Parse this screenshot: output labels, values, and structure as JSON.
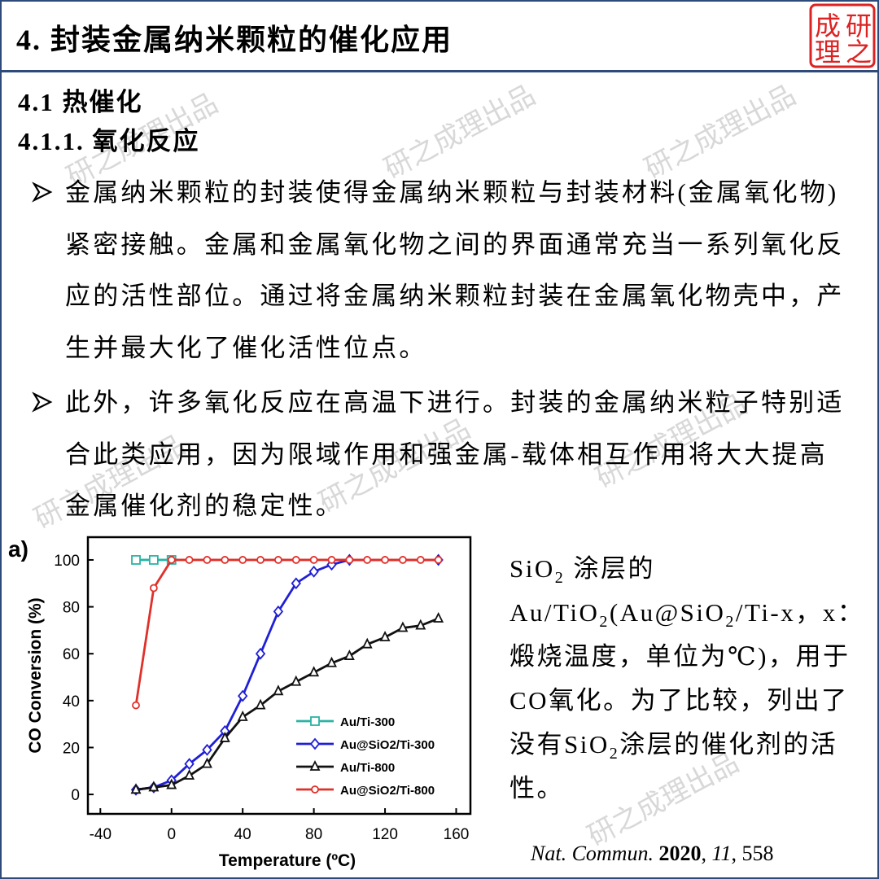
{
  "header": {
    "title": "4. 封装金属纳米颗粒的催化应用",
    "logo": [
      "研",
      "之",
      "成",
      "理"
    ]
  },
  "watermark": "研之成理出品",
  "section": "4.1 热催化",
  "subsection": "4.1.1. 氧化反应",
  "bullets": [
    "金属纳米颗粒的封装使得金属纳米颗粒与封装材料(金属氧化物)紧密接触。金属和金属氧化物之间的界面通常充当一系列氧化反应的活性部位。通过将金属纳米颗粒封装在金属氧化物壳中，产生并最大化了催化活性位点。",
    "此外，许多氧化反应在高温下进行。封装的金属纳米粒子特别适合此类应用，因为限域作用和强金属-载体相互作用将大大提高金属催化剂的稳定性。"
  ],
  "caption": [
    {
      "text": "SiO"
    },
    {
      "text": "2",
      "style": "sub"
    },
    {
      "text": " 涂层的 Au/TiO"
    },
    {
      "text": "2",
      "style": "sub"
    },
    {
      "text": "(Au@SiO"
    },
    {
      "text": "2",
      "style": "sub"
    },
    {
      "text": "/Ti-x，x：煅烧温度，单位为℃)，用于CO氧化。为了比较，列出了没有SiO"
    },
    {
      "text": "2",
      "style": "sub"
    },
    {
      "text": "涂层的催化剂的活性。"
    }
  ],
  "citation": [
    {
      "text": "Nat. Commun.",
      "style": "italic"
    },
    {
      "text": " "
    },
    {
      "text": "2020",
      "style": "bold"
    },
    {
      "text": ", "
    },
    {
      "text": "11",
      "style": "italic"
    },
    {
      "text": ", 558"
    }
  ],
  "chart_data": {
    "type": "line",
    "panel_label": "a)",
    "x_label": "Temperature (ºC)",
    "y_label": "CO Conversion (%)",
    "xlim": [
      -47,
      168
    ],
    "ylim": [
      -8.3,
      109.7
    ],
    "xticks": [
      -40,
      0,
      40,
      80,
      120,
      160
    ],
    "yticks": [
      0,
      20,
      40,
      60,
      80,
      100
    ],
    "series": [
      {
        "name": "Au/Ti-300",
        "color": "#2bb3a6",
        "marker": "square",
        "x": [
          -20,
          -10,
          0
        ],
        "values": [
          100,
          100,
          100
        ]
      },
      {
        "name": "Au@SiO2/Ti-300",
        "color": "#1f1fd6",
        "marker": "diamond",
        "x": [
          -20,
          -10,
          0,
          10,
          20,
          30,
          40,
          50,
          60,
          70,
          80,
          90,
          100,
          150
        ],
        "values": [
          2,
          3,
          6,
          13,
          19,
          27,
          42,
          60,
          78,
          90,
          95,
          98,
          100,
          100
        ]
      },
      {
        "name": "Au/Ti-800",
        "color": "#111111",
        "marker": "triangle",
        "x": [
          -20,
          -10,
          0,
          10,
          20,
          30,
          40,
          50,
          60,
          70,
          80,
          90,
          100,
          110,
          120,
          130,
          140,
          150
        ],
        "values": [
          2,
          3,
          4,
          8,
          13,
          24,
          33,
          38,
          44,
          48,
          52,
          56,
          59,
          64,
          67,
          71,
          72,
          75
        ]
      },
      {
        "name": "Au@SiO2/Ti-800",
        "color": "#e0302a",
        "marker": "circle",
        "x": [
          -20,
          -10,
          0,
          10,
          20,
          30,
          40,
          50,
          60,
          70,
          80,
          90,
          100,
          110,
          120,
          130,
          140,
          150
        ],
        "values": [
          38,
          88,
          100,
          100,
          100,
          100,
          100,
          100,
          100,
          100,
          100,
          100,
          100,
          100,
          100,
          100,
          100,
          100
        ]
      }
    ]
  }
}
